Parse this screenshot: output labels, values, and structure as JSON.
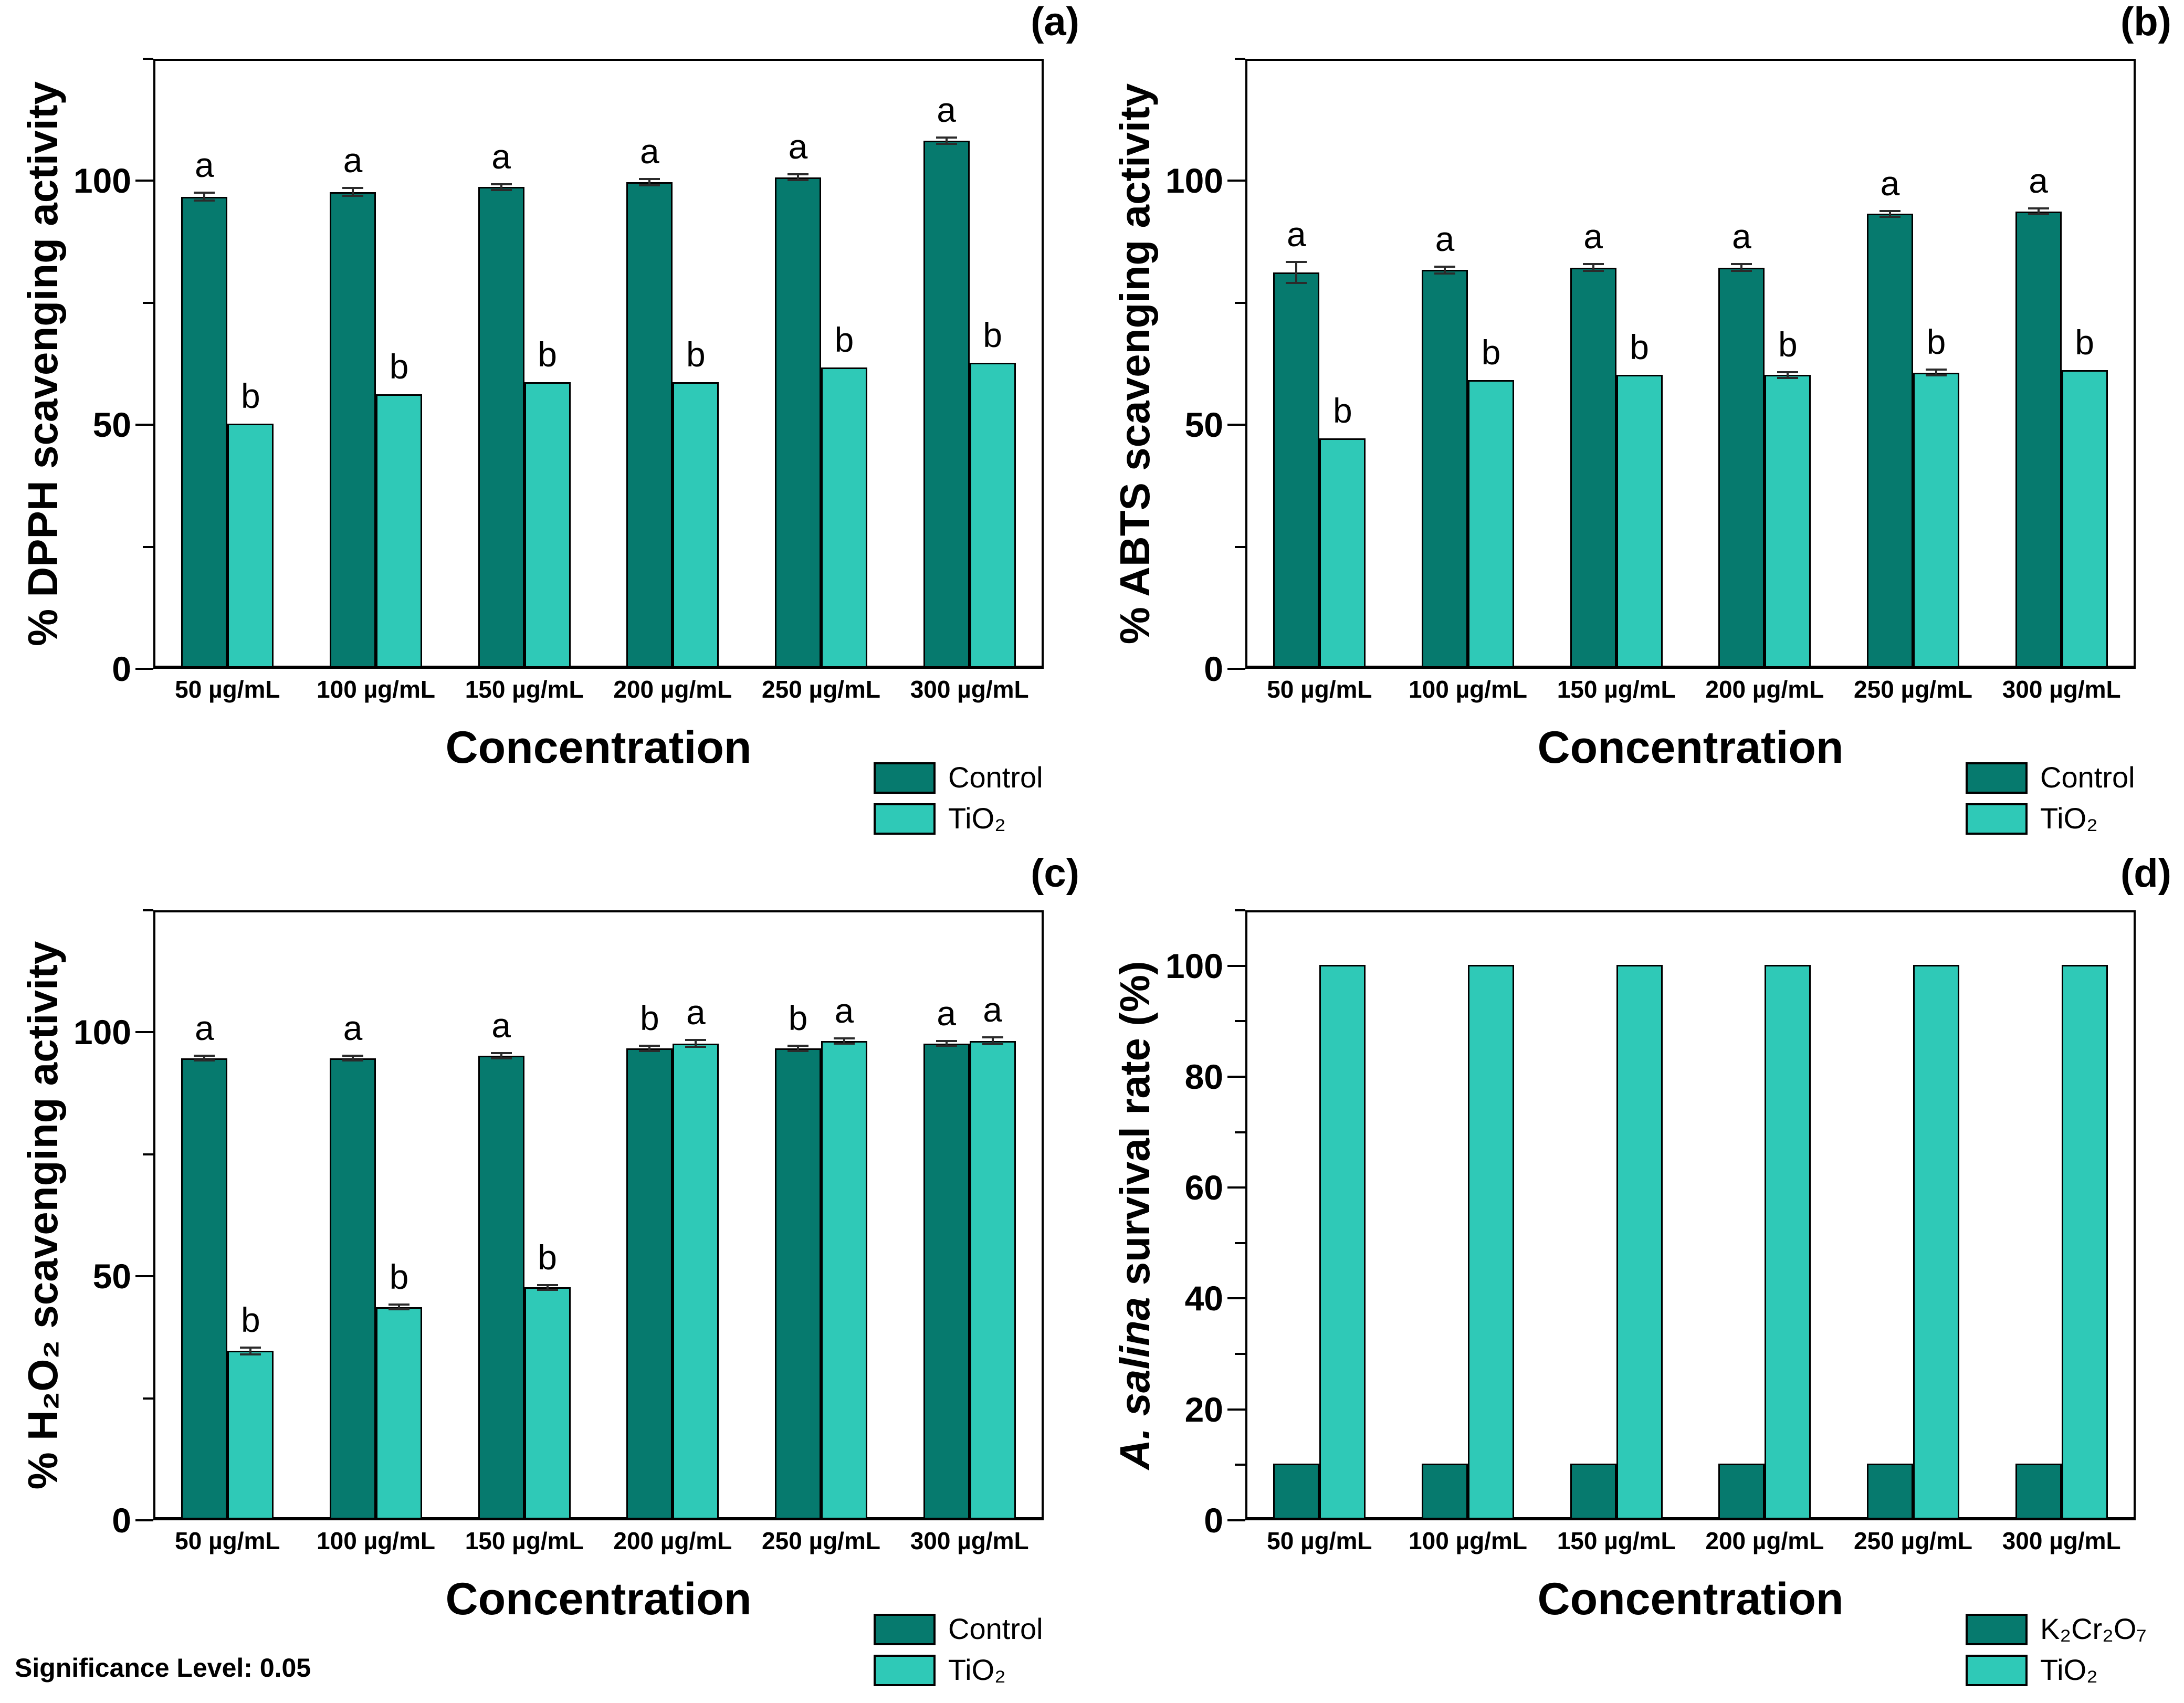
{
  "figure": {
    "significance_note": "Significance Level: 0.05"
  },
  "colors": {
    "control_dark_teal": "#067a6e",
    "tio2_light_teal": "#2fc9b7",
    "outline": "#000000",
    "error_bar": "#2b2b2b"
  },
  "categories": [
    "50 µg/mL",
    "100 µg/mL",
    "150 µg/mL",
    "200 µg/mL",
    "250 µg/mL",
    "300 µg/mL"
  ],
  "chart_data": [
    {
      "id": "a",
      "type": "bar",
      "panel_label": "(a)",
      "ylabel": "% DPPH scavenging activity",
      "ylabel_italic": "",
      "xlabel": "Concentration",
      "ylim": [
        0,
        125
      ],
      "yticks": [
        0,
        50,
        100
      ],
      "yticks_minor": [
        25,
        75,
        125
      ],
      "grid": "off",
      "legend_position": "below-right",
      "categories": [
        "50 µg/mL",
        "100 µg/mL",
        "150 µg/mL",
        "200 µg/mL",
        "250 µg/mL",
        "300 µg/mL"
      ],
      "series": [
        {
          "name": "Control",
          "color": "#067a6e",
          "values": [
            96.5,
            97.5,
            98.5,
            99.5,
            100.5,
            108
          ],
          "errors": [
            0.8,
            0.8,
            0.6,
            0.6,
            0.6,
            0.6
          ],
          "sig_letters": [
            "a",
            "a",
            "a",
            "a",
            "a",
            "a"
          ]
        },
        {
          "name": "TiO₂",
          "color": "#2fc9b7",
          "values": [
            50,
            56,
            58.5,
            58.5,
            61.5,
            62.5
          ],
          "errors": [
            0,
            0,
            0,
            0,
            0,
            0
          ],
          "sig_letters": [
            "b",
            "b",
            "b",
            "b",
            "b",
            "b"
          ]
        }
      ]
    },
    {
      "id": "b",
      "type": "bar",
      "panel_label": "(b)",
      "ylabel": "% ABTS scavenging activity",
      "ylabel_italic": "",
      "xlabel": "Concentration",
      "ylim": [
        0,
        125
      ],
      "yticks": [
        0,
        50,
        100
      ],
      "yticks_minor": [
        25,
        75,
        125
      ],
      "grid": "off",
      "legend_position": "below-right",
      "categories": [
        "50 µg/mL",
        "100 µg/mL",
        "150 µg/mL",
        "200 µg/mL",
        "250 µg/mL",
        "300 µg/mL"
      ],
      "series": [
        {
          "name": "Control",
          "color": "#067a6e",
          "values": [
            81,
            81.5,
            82,
            82,
            93,
            93.5
          ],
          "errors": [
            2.2,
            0.7,
            0.7,
            0.7,
            0.6,
            0.6
          ],
          "sig_letters": [
            "a",
            "a",
            "a",
            "a",
            "a",
            "a"
          ]
        },
        {
          "name": "TiO₂",
          "color": "#2fc9b7",
          "values": [
            47,
            59,
            60,
            60,
            60.5,
            61
          ],
          "errors": [
            0,
            0,
            0,
            0.6,
            0.6,
            0
          ],
          "sig_letters": [
            "b",
            "b",
            "b",
            "b",
            "b",
            "b"
          ]
        }
      ]
    },
    {
      "id": "c",
      "type": "bar",
      "panel_label": "(c)",
      "ylabel": "% H₂O₂ scavenging activity",
      "ylabel_italic": "",
      "xlabel": "Concentration",
      "ylim": [
        0,
        125
      ],
      "yticks": [
        0,
        50,
        100
      ],
      "yticks_minor": [
        25,
        75,
        125
      ],
      "grid": "off",
      "legend_position": "below-right",
      "categories": [
        "50 µg/mL",
        "100 µg/mL",
        "150 µg/mL",
        "200 µg/mL",
        "250 µg/mL",
        "300 µg/mL"
      ],
      "series": [
        {
          "name": "Control",
          "color": "#067a6e",
          "values": [
            94.5,
            94.5,
            95,
            96.5,
            96.5,
            97.5
          ],
          "errors": [
            0.5,
            0.5,
            0.5,
            0.5,
            0.5,
            0.5
          ],
          "sig_letters": [
            "a",
            "a",
            "a",
            "b",
            "b",
            "a"
          ]
        },
        {
          "name": "TiO₂",
          "color": "#2fc9b7",
          "values": [
            34.5,
            43.5,
            47.5,
            97.5,
            98,
            98
          ],
          "errors": [
            0.7,
            0.5,
            0.5,
            0.7,
            0.5,
            0.7
          ],
          "sig_letters": [
            "b",
            "b",
            "b",
            "a",
            "a",
            "a"
          ]
        }
      ]
    },
    {
      "id": "d",
      "type": "bar",
      "panel_label": "(d)",
      "ylabel": " survival rate (%)",
      "ylabel_italic": "A. salina",
      "xlabel": "Concentration",
      "ylim": [
        0,
        110
      ],
      "yticks": [
        0,
        20,
        40,
        60,
        80,
        100
      ],
      "yticks_minor": [
        10,
        30,
        50,
        70,
        90,
        110
      ],
      "grid": "off",
      "legend_position": "below-right",
      "categories": [
        "50 µg/mL",
        "100 µg/mL",
        "150 µg/mL",
        "200 µg/mL",
        "250 µg/mL",
        "300 µg/mL"
      ],
      "series": [
        {
          "name": "K₂Cr₂O₇",
          "color": "#067a6e",
          "values": [
            10,
            10,
            10,
            10,
            10,
            10
          ],
          "errors": [
            0,
            0,
            0,
            0,
            0,
            0
          ],
          "sig_letters": []
        },
        {
          "name": "TiO₂",
          "color": "#2fc9b7",
          "values": [
            100,
            100,
            100,
            100,
            100,
            100
          ],
          "errors": [
            0,
            0,
            0,
            0,
            0,
            0
          ],
          "sig_letters": []
        }
      ]
    }
  ]
}
